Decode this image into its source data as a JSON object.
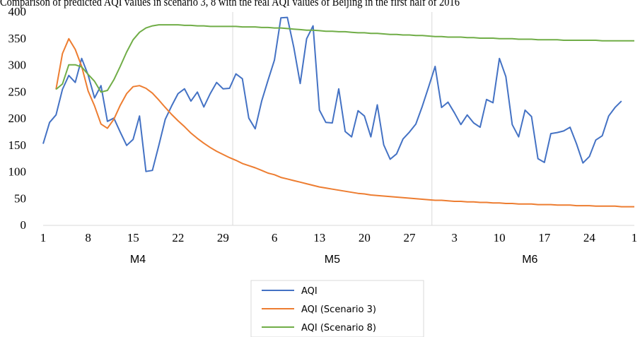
{
  "caption_fragment": "Comparison of predicted AQI values in scenario 3, 8 with the real AQI values of Beijing in the first half of 2016",
  "chart_data": {
    "type": "line",
    "title": "",
    "xlabel": "",
    "ylabel": "",
    "ylim": [
      0,
      400
    ],
    "y_ticks": [
      0,
      50,
      100,
      150,
      200,
      250,
      300,
      350,
      400
    ],
    "grid": "vertical separators between months",
    "legend_position": "bottom",
    "x_tick_labels": [
      "1",
      "8",
      "15",
      "22",
      "29",
      "6",
      "13",
      "20",
      "27",
      "3",
      "10",
      "17",
      "24",
      "1"
    ],
    "x_tick_days": [
      1,
      8,
      15,
      22,
      29,
      37,
      44,
      51,
      58,
      65,
      72,
      79,
      86,
      93
    ],
    "month_groups": [
      {
        "label": "M4",
        "start_day": 1,
        "end_day": 30.5
      },
      {
        "label": "M5",
        "start_day": 30.5,
        "end_day": 61.5
      },
      {
        "label": "M6",
        "start_day": 61.5,
        "end_day": 92
      }
    ],
    "x_start_day": 1,
    "series": [
      {
        "name": "AQI",
        "color": "#4472C4",
        "values": [
          153,
          193,
          207,
          255,
          281,
          268,
          313,
          282,
          239,
          262,
          195,
          201,
          175,
          150,
          161,
          205,
          101,
          103,
          150,
          199,
          224,
          247,
          256,
          233,
          250,
          222,
          247,
          268,
          256,
          257,
          284,
          275,
          201,
          181,
          233,
          272,
          310,
          389,
          390,
          334,
          266,
          350,
          374,
          216,
          193,
          192,
          256,
          176,
          166,
          215,
          205,
          166,
          226,
          151,
          124,
          134,
          162,
          175,
          190,
          223,
          260,
          298,
          221,
          231,
          211,
          189,
          207,
          192,
          184,
          236,
          230,
          313,
          279,
          189,
          166,
          216,
          204,
          125,
          118,
          172,
          174,
          177,
          184,
          153,
          117,
          129,
          160,
          168,
          205,
          221,
          233
        ]
      },
      {
        "name": "AQI (Scenario 3)",
        "color": "#ED7D31",
        "start_day": 3,
        "values": [
          255,
          322,
          350,
          330,
          298,
          252,
          224,
          190,
          182,
          199,
          225,
          247,
          260,
          262,
          257,
          248,
          235,
          221,
          208,
          196,
          185,
          173,
          163,
          154,
          146,
          139,
          133,
          127,
          122,
          116,
          112,
          108,
          103,
          98,
          95,
          90,
          87,
          84,
          81,
          78,
          75,
          72,
          70,
          68,
          66,
          64,
          62,
          60,
          59,
          57,
          56,
          55,
          54,
          53,
          52,
          51,
          50,
          49,
          48,
          47,
          47,
          46,
          45,
          45,
          44,
          44,
          43,
          43,
          42,
          42,
          41,
          41,
          40,
          40,
          40,
          39,
          39,
          39,
          38,
          38,
          38,
          37,
          37,
          37,
          36,
          36,
          36,
          36,
          35,
          35,
          35
        ]
      },
      {
        "name": "AQI (Scenario 8)",
        "color": "#70AD47",
        "start_day": 3,
        "values": [
          255,
          265,
          301,
          301,
          297,
          283,
          270,
          250,
          253,
          273,
          298,
          325,
          348,
          362,
          370,
          374,
          376,
          376,
          376,
          376,
          375,
          375,
          374,
          374,
          373,
          373,
          373,
          373,
          373,
          372,
          372,
          372,
          371,
          371,
          370,
          370,
          369,
          368,
          367,
          366,
          366,
          365,
          364,
          364,
          363,
          363,
          362,
          361,
          361,
          360,
          360,
          359,
          358,
          358,
          357,
          357,
          356,
          356,
          355,
          354,
          354,
          353,
          353,
          353,
          352,
          352,
          351,
          351,
          351,
          350,
          350,
          350,
          349,
          349,
          349,
          348,
          348,
          348,
          348,
          347,
          347,
          347,
          347,
          347,
          347,
          346,
          346,
          346,
          346,
          346,
          346
        ]
      }
    ]
  }
}
